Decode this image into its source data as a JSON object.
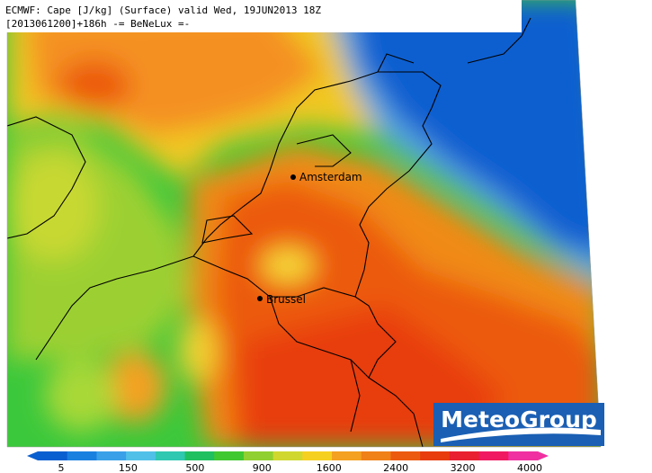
{
  "header": {
    "line1": "ECMWF: Cape [J/kg] (Surface) valid Wed, 19JUN2013 18Z",
    "line2": "[2013061200]+186h -= BeNeLux =-"
  },
  "cities": [
    {
      "label": "Amsterdam"
    },
    {
      "label": "Brussel"
    }
  ],
  "logo": "MeteoGroup",
  "legend": {
    "ticks": [
      5,
      150,
      500,
      900,
      1600,
      2400,
      3200,
      4000
    ]
  }
}
